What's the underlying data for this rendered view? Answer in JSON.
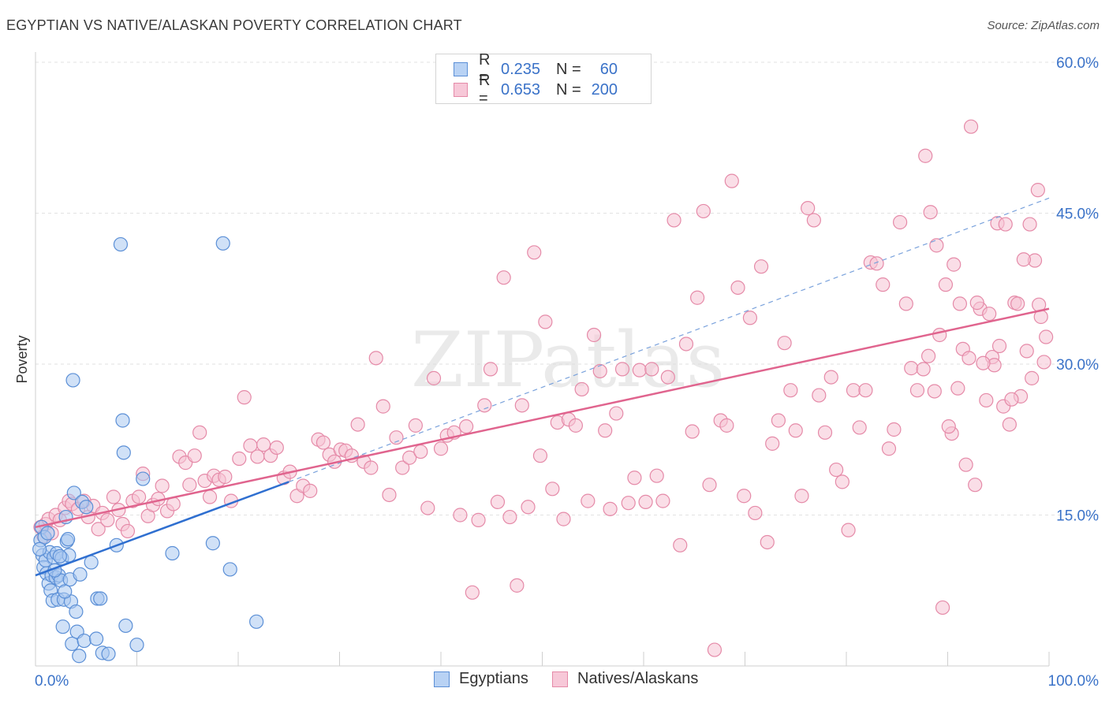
{
  "title": "EGYPTIAN VS NATIVE/ALASKAN POVERTY CORRELATION CHART",
  "source": "Source: ZipAtlas.com",
  "watermark": "ZIPatlas",
  "legend": {
    "rows": [
      {
        "r_label": "R =",
        "r_value": "0.235",
        "n_label": "N =",
        "n_value": "60"
      },
      {
        "r_label": "R =",
        "r_value": "0.653",
        "n_label": "N =",
        "n_value": "200"
      }
    ]
  },
  "bottom_legend": [
    "Egyptians",
    "Natives/Alaskans"
  ],
  "colors": {
    "blue_fill": "#a9c8f0",
    "blue_stroke": "#5b8fd6",
    "blue_line": "#2f6fd0",
    "pink_fill": "#f6c3d4",
    "pink_stroke": "#e58aa8",
    "pink_line": "#e0648e",
    "axis_text": "#3a72c8",
    "grid": "#e2e2e2"
  },
  "chart_data": {
    "type": "scatter",
    "title": "EGYPTIAN VS NATIVE/ALASKAN POVERTY CORRELATION CHART",
    "xlabel": "",
    "ylabel": "Poverty",
    "xlim": [
      0,
      100
    ],
    "ylim": [
      0,
      60
    ],
    "x_tick_labels": [
      "0.0%",
      "100.0%"
    ],
    "y_ticks": [
      15,
      30,
      45,
      60
    ],
    "y_tick_labels": [
      "15.0%",
      "30.0%",
      "45.0%",
      "60.0%"
    ],
    "grid": true,
    "legend_position": "top-center",
    "series": [
      {
        "name": "Egyptians",
        "trend": {
          "x": [
            0,
            25
          ],
          "y": [
            9.0,
            18.3
          ],
          "extended_to": [
            100,
            46.5
          ]
        },
        "points": [
          [
            0.5,
            12.5
          ],
          [
            0.6,
            13.8
          ],
          [
            0.7,
            11.0
          ],
          [
            0.8,
            9.8
          ],
          [
            1.0,
            10.5
          ],
          [
            1.1,
            9.2
          ],
          [
            1.3,
            8.2
          ],
          [
            1.4,
            11.3
          ],
          [
            1.5,
            7.5
          ],
          [
            1.6,
            9.0
          ],
          [
            1.7,
            6.5
          ],
          [
            1.8,
            10.8
          ],
          [
            2.0,
            8.8
          ],
          [
            2.1,
            11.2
          ],
          [
            2.2,
            6.6
          ],
          [
            2.3,
            9.0
          ],
          [
            2.5,
            8.5
          ],
          [
            2.6,
            10.7
          ],
          [
            2.7,
            3.9
          ],
          [
            2.8,
            6.6
          ],
          [
            3.0,
            14.8
          ],
          [
            3.1,
            12.4
          ],
          [
            3.3,
            11.0
          ],
          [
            3.4,
            8.6
          ],
          [
            3.5,
            6.4
          ],
          [
            3.6,
            2.2
          ],
          [
            3.7,
            28.4
          ],
          [
            3.8,
            17.2
          ],
          [
            4.0,
            5.4
          ],
          [
            4.1,
            3.4
          ],
          [
            4.3,
            1.0
          ],
          [
            4.4,
            9.1
          ],
          [
            4.6,
            16.3
          ],
          [
            4.8,
            2.5
          ],
          [
            5.0,
            15.8
          ],
          [
            5.5,
            10.3
          ],
          [
            6.0,
            2.7
          ],
          [
            6.1,
            6.7
          ],
          [
            6.4,
            6.7
          ],
          [
            6.6,
            1.3
          ],
          [
            7.2,
            1.2
          ],
          [
            8.0,
            12.0
          ],
          [
            8.4,
            41.9
          ],
          [
            8.6,
            24.4
          ],
          [
            8.7,
            21.2
          ],
          [
            8.9,
            4.0
          ],
          [
            10.0,
            2.1
          ],
          [
            10.6,
            18.6
          ],
          [
            13.5,
            11.2
          ],
          [
            17.5,
            12.2
          ],
          [
            18.5,
            42.0
          ],
          [
            19.2,
            9.6
          ],
          [
            21.8,
            4.4
          ],
          [
            0.9,
            12.8
          ],
          [
            1.2,
            13.2
          ],
          [
            2.4,
            10.9
          ],
          [
            3.2,
            12.6
          ],
          [
            1.9,
            9.5
          ],
          [
            2.9,
            7.4
          ],
          [
            0.4,
            11.6
          ]
        ]
      },
      {
        "name": "Natives/Alaskans",
        "trend": {
          "x": [
            0,
            100
          ],
          "y": [
            13.8,
            35.5
          ]
        },
        "points": [
          [
            0.5,
            13.8
          ],
          [
            0.8,
            12.9
          ],
          [
            1.0,
            14.1
          ],
          [
            1.3,
            14.6
          ],
          [
            1.6,
            13.2
          ],
          [
            2.0,
            15.0
          ],
          [
            2.4,
            14.5
          ],
          [
            2.9,
            15.7
          ],
          [
            3.3,
            16.4
          ],
          [
            3.6,
            16.1
          ],
          [
            4.2,
            15.6
          ],
          [
            4.8,
            16.4
          ],
          [
            5.2,
            14.8
          ],
          [
            5.7,
            15.9
          ],
          [
            6.2,
            13.6
          ],
          [
            6.6,
            15.2
          ],
          [
            7.1,
            14.5
          ],
          [
            7.7,
            16.8
          ],
          [
            8.2,
            15.5
          ],
          [
            8.6,
            14.1
          ],
          [
            9.1,
            13.4
          ],
          [
            9.6,
            16.4
          ],
          [
            10.2,
            16.8
          ],
          [
            10.6,
            19.1
          ],
          [
            11.1,
            14.9
          ],
          [
            11.6,
            16.0
          ],
          [
            12.1,
            16.6
          ],
          [
            12.5,
            17.9
          ],
          [
            13.0,
            15.4
          ],
          [
            13.6,
            16.1
          ],
          [
            14.2,
            20.8
          ],
          [
            14.8,
            20.2
          ],
          [
            15.2,
            18.0
          ],
          [
            15.7,
            20.9
          ],
          [
            16.2,
            23.2
          ],
          [
            16.7,
            18.4
          ],
          [
            17.2,
            16.8
          ],
          [
            17.6,
            18.9
          ],
          [
            18.1,
            18.5
          ],
          [
            18.7,
            18.8
          ],
          [
            19.3,
            16.4
          ],
          [
            20.1,
            20.6
          ],
          [
            20.6,
            26.7
          ],
          [
            21.2,
            21.9
          ],
          [
            21.9,
            20.8
          ],
          [
            22.5,
            22.0
          ],
          [
            23.2,
            20.9
          ],
          [
            23.8,
            21.7
          ],
          [
            24.5,
            18.7
          ],
          [
            25.1,
            19.3
          ],
          [
            25.8,
            16.9
          ],
          [
            26.4,
            17.9
          ],
          [
            27.1,
            17.4
          ],
          [
            27.9,
            22.5
          ],
          [
            28.4,
            22.2
          ],
          [
            29.0,
            21.0
          ],
          [
            29.5,
            20.3
          ],
          [
            30.1,
            21.5
          ],
          [
            30.6,
            21.4
          ],
          [
            31.2,
            20.9
          ],
          [
            31.8,
            24.0
          ],
          [
            32.4,
            20.3
          ],
          [
            33.1,
            19.7
          ],
          [
            33.6,
            30.6
          ],
          [
            34.3,
            25.8
          ],
          [
            34.9,
            17.0
          ],
          [
            35.6,
            22.7
          ],
          [
            36.2,
            19.7
          ],
          [
            36.9,
            20.7
          ],
          [
            37.5,
            23.9
          ],
          [
            38.0,
            21.3
          ],
          [
            38.7,
            15.7
          ],
          [
            39.3,
            28.6
          ],
          [
            40.0,
            21.6
          ],
          [
            40.6,
            22.9
          ],
          [
            41.3,
            23.2
          ],
          [
            41.9,
            15.0
          ],
          [
            42.5,
            23.8
          ],
          [
            43.1,
            7.3
          ],
          [
            43.7,
            14.5
          ],
          [
            44.3,
            25.9
          ],
          [
            44.9,
            29.5
          ],
          [
            45.6,
            16.3
          ],
          [
            46.2,
            38.6
          ],
          [
            46.8,
            14.8
          ],
          [
            47.5,
            8.0
          ],
          [
            48.0,
            25.9
          ],
          [
            48.6,
            15.8
          ],
          [
            49.2,
            41.1
          ],
          [
            49.8,
            20.9
          ],
          [
            50.3,
            34.2
          ],
          [
            51.0,
            17.6
          ],
          [
            51.5,
            24.2
          ],
          [
            52.1,
            14.6
          ],
          [
            52.6,
            24.5
          ],
          [
            53.3,
            23.9
          ],
          [
            53.9,
            27.5
          ],
          [
            54.5,
            16.4
          ],
          [
            55.1,
            32.9
          ],
          [
            55.7,
            29.3
          ],
          [
            56.2,
            23.4
          ],
          [
            56.7,
            15.6
          ],
          [
            57.3,
            25.1
          ],
          [
            57.9,
            29.5
          ],
          [
            58.5,
            16.2
          ],
          [
            59.1,
            18.7
          ],
          [
            59.6,
            29.4
          ],
          [
            60.2,
            16.3
          ],
          [
            60.8,
            29.5
          ],
          [
            61.3,
            18.9
          ],
          [
            61.9,
            16.4
          ],
          [
            62.4,
            28.7
          ],
          [
            63.0,
            44.3
          ],
          [
            63.6,
            12.0
          ],
          [
            64.2,
            32.0
          ],
          [
            64.8,
            23.3
          ],
          [
            65.3,
            36.6
          ],
          [
            65.9,
            45.2
          ],
          [
            66.5,
            18.0
          ],
          [
            67.0,
            1.6
          ],
          [
            67.6,
            24.4
          ],
          [
            68.2,
            23.9
          ],
          [
            68.7,
            48.2
          ],
          [
            69.3,
            37.6
          ],
          [
            69.9,
            16.9
          ],
          [
            70.5,
            34.6
          ],
          [
            71.0,
            15.2
          ],
          [
            71.6,
            39.7
          ],
          [
            72.2,
            12.3
          ],
          [
            72.7,
            22.1
          ],
          [
            73.3,
            24.4
          ],
          [
            73.9,
            32.1
          ],
          [
            74.5,
            27.4
          ],
          [
            75.0,
            23.4
          ],
          [
            75.6,
            16.9
          ],
          [
            76.2,
            45.5
          ],
          [
            76.8,
            44.3
          ],
          [
            77.3,
            26.9
          ],
          [
            77.9,
            23.2
          ],
          [
            78.5,
            28.7
          ],
          [
            79.0,
            19.5
          ],
          [
            79.6,
            18.3
          ],
          [
            80.2,
            13.5
          ],
          [
            80.7,
            27.4
          ],
          [
            81.3,
            23.7
          ],
          [
            81.9,
            27.4
          ],
          [
            82.4,
            40.1
          ],
          [
            83.0,
            40.0
          ],
          [
            83.6,
            37.9
          ],
          [
            84.2,
            21.6
          ],
          [
            84.7,
            23.5
          ],
          [
            85.3,
            44.1
          ],
          [
            85.9,
            36.0
          ],
          [
            86.4,
            29.6
          ],
          [
            87.0,
            27.4
          ],
          [
            87.6,
            29.5
          ],
          [
            88.1,
            30.8
          ],
          [
            88.7,
            27.3
          ],
          [
            89.2,
            32.9
          ],
          [
            89.8,
            37.9
          ],
          [
            90.4,
            23.1
          ],
          [
            91.0,
            27.6
          ],
          [
            91.5,
            31.5
          ],
          [
            92.1,
            30.6
          ],
          [
            92.7,
            18.0
          ],
          [
            93.2,
            35.5
          ],
          [
            93.8,
            26.4
          ],
          [
            94.4,
            30.7
          ],
          [
            94.9,
            44.0
          ],
          [
            95.5,
            25.8
          ],
          [
            96.1,
            24.0
          ],
          [
            96.6,
            36.1
          ],
          [
            97.2,
            26.8
          ],
          [
            97.8,
            31.3
          ],
          [
            98.3,
            28.6
          ],
          [
            98.9,
            47.3
          ],
          [
            99.5,
            30.2
          ],
          [
            99.0,
            35.9
          ],
          [
            99.7,
            32.7
          ],
          [
            99.2,
            34.7
          ],
          [
            98.6,
            40.3
          ],
          [
            98.1,
            43.9
          ],
          [
            97.5,
            40.4
          ],
          [
            96.9,
            36.0
          ],
          [
            96.3,
            26.5
          ],
          [
            95.7,
            43.9
          ],
          [
            95.1,
            31.8
          ],
          [
            94.6,
            29.9
          ],
          [
            94.1,
            35.0
          ],
          [
            93.5,
            30.1
          ],
          [
            92.9,
            36.1
          ],
          [
            92.3,
            53.6
          ],
          [
            91.8,
            20.0
          ],
          [
            91.2,
            36.0
          ],
          [
            90.6,
            39.9
          ],
          [
            90.1,
            23.8
          ],
          [
            89.5,
            5.8
          ],
          [
            88.9,
            41.8
          ],
          [
            88.3,
            45.1
          ],
          [
            87.8,
            50.7
          ]
        ]
      }
    ]
  }
}
